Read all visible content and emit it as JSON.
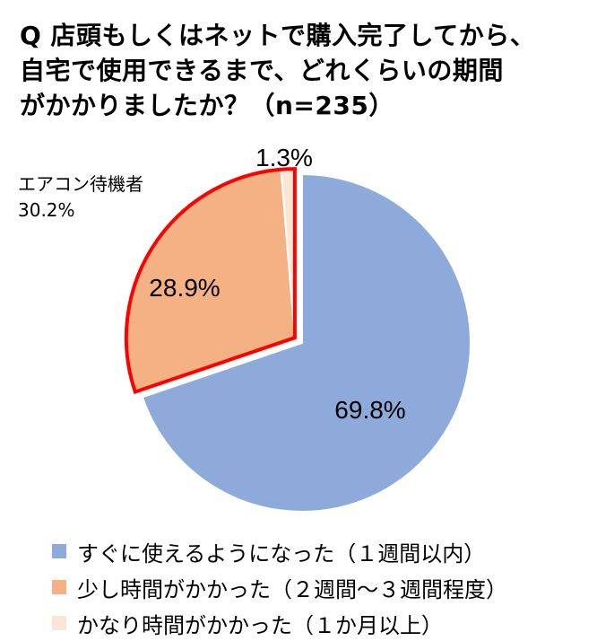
{
  "title": {
    "line1": "Q 店頭もしくはネットで購入完了してから、",
    "line2": "自宅で使用できるまで、どれくらいの期間",
    "line3": "がかかりましたか？（n=235）"
  },
  "chart_data": {
    "type": "pie",
    "slices": [
      {
        "label": "すぐに使えるようになった（１週間以内）",
        "value": 69.8,
        "value_label": "69.8%",
        "color": "#8eaadb"
      },
      {
        "label": "少し時間がかかった（２週間〜３週間程度）",
        "value": 28.9,
        "value_label": "28.9%",
        "color": "#f4b183"
      },
      {
        "label": "かなり時間がかかった（１か月以上）",
        "value": 1.3,
        "value_label": "1.3%",
        "color": "#fbe5d6"
      }
    ],
    "group_annotation": {
      "label": "エアコン待機者",
      "value_label": "30.2%",
      "highlight_color": "#ff0000"
    },
    "legend_position": "bottom"
  }
}
